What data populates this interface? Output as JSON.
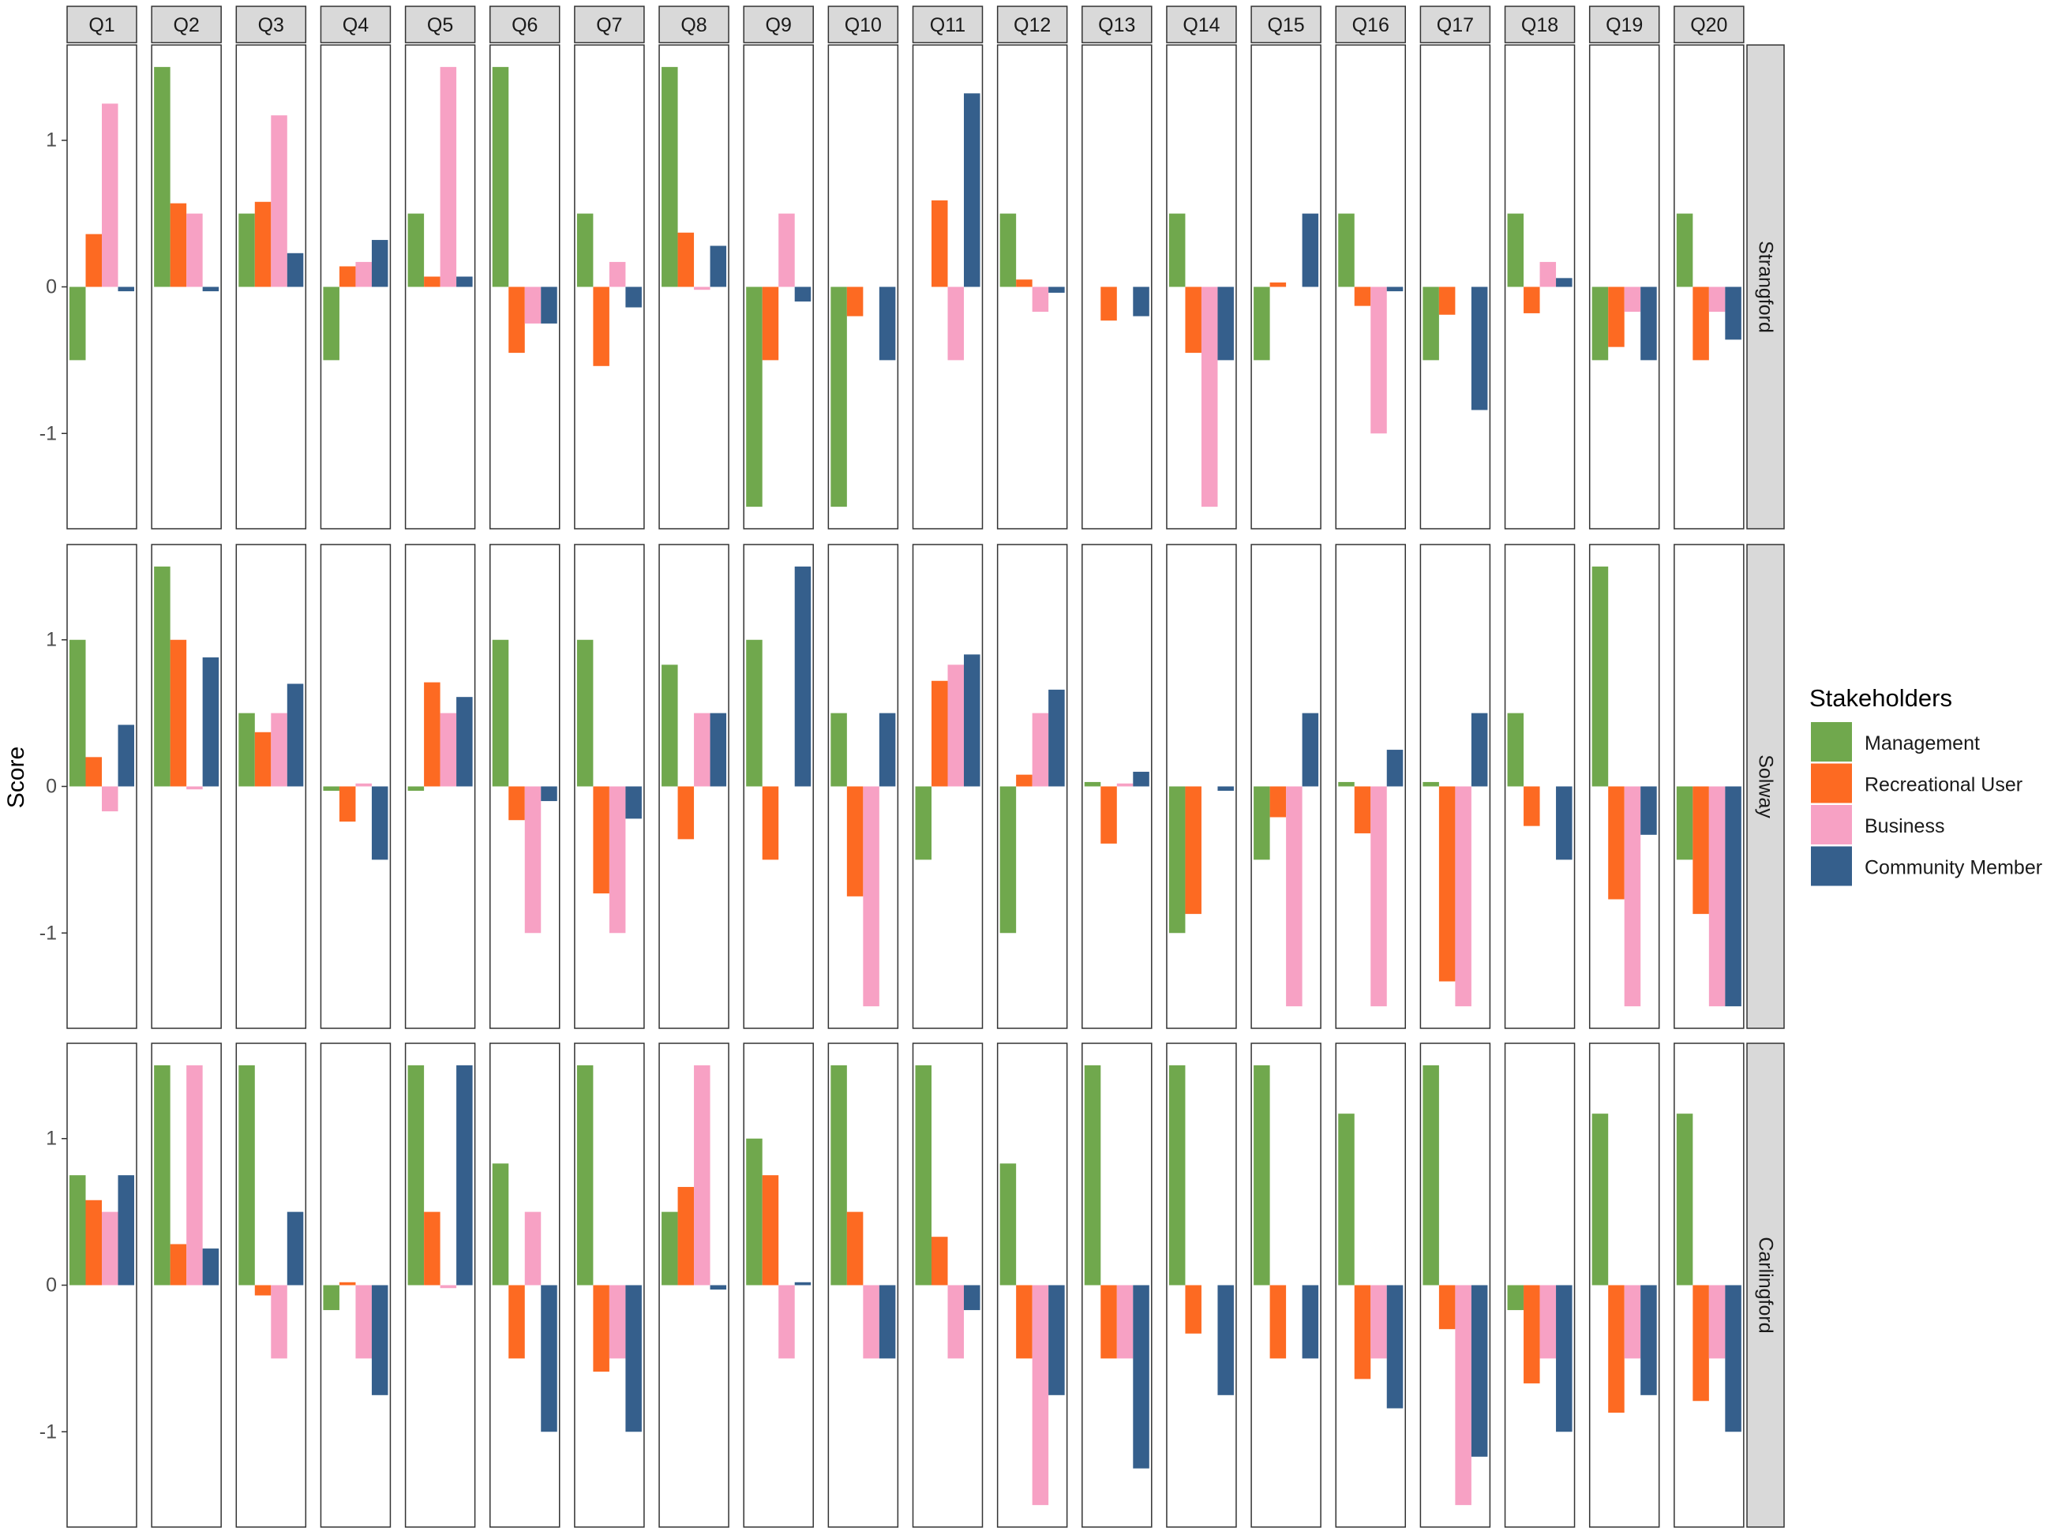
{
  "chart_data": {
    "type": "bar",
    "ylabel": "Score",
    "ylim": [
      -1.65,
      1.65
    ],
    "yticks": [
      -1,
      0,
      1
    ],
    "ytick_labels": [
      "-1",
      "0",
      "1"
    ],
    "grid": false,
    "legend_position": "right",
    "legend_title": "Stakeholders",
    "categories": [
      "Q1",
      "Q2",
      "Q3",
      "Q4",
      "Q5",
      "Q6",
      "Q7",
      "Q8",
      "Q9",
      "Q10",
      "Q11",
      "Q12",
      "Q13",
      "Q14",
      "Q15",
      "Q16",
      "Q17",
      "Q18",
      "Q19",
      "Q20"
    ],
    "series": [
      {
        "name": "Management",
        "color": "#70a84d"
      },
      {
        "name": "Recreational User",
        "color": "#fd6a22"
      },
      {
        "name": "Business",
        "color": "#f7a1c4"
      },
      {
        "name": "Community Member",
        "color": "#355f8c"
      }
    ],
    "panels": [
      {
        "name": "Strangford",
        "values": [
          [
            -0.5,
            0.36,
            1.25,
            -0.03
          ],
          [
            1.5,
            0.57,
            0.5,
            -0.03
          ],
          [
            0.5,
            0.58,
            1.17,
            0.23
          ],
          [
            -0.5,
            0.14,
            0.17,
            0.32
          ],
          [
            0.5,
            0.07,
            1.5,
            0.07
          ],
          [
            1.5,
            -0.45,
            -0.25,
            -0.25
          ],
          [
            0.5,
            -0.54,
            0.17,
            -0.14
          ],
          [
            1.5,
            0.37,
            -0.02,
            0.28
          ],
          [
            -1.5,
            -0.5,
            0.5,
            -0.1
          ],
          [
            -1.5,
            -0.2,
            0.0,
            -0.5
          ],
          [
            0.0,
            0.59,
            -0.5,
            1.32
          ],
          [
            0.5,
            0.05,
            -0.17,
            -0.04
          ],
          [
            0.0,
            -0.23,
            0.0,
            -0.2
          ],
          [
            0.5,
            -0.45,
            -1.5,
            -0.5
          ],
          [
            -0.5,
            0.03,
            0.0,
            0.5
          ],
          [
            0.5,
            -0.13,
            -1.0,
            -0.03
          ],
          [
            -0.5,
            -0.19,
            0.0,
            -0.84
          ],
          [
            0.5,
            -0.18,
            0.17,
            0.06
          ],
          [
            -0.5,
            -0.41,
            -0.17,
            -0.5
          ],
          [
            0.5,
            -0.5,
            -0.17,
            -0.36
          ]
        ]
      },
      {
        "name": "Solway",
        "values": [
          [
            1.0,
            0.2,
            -0.17,
            0.42
          ],
          [
            1.5,
            1.0,
            -0.02,
            0.88
          ],
          [
            0.5,
            0.37,
            0.5,
            0.7
          ],
          [
            -0.03,
            -0.24,
            0.02,
            -0.5
          ],
          [
            -0.03,
            0.71,
            0.5,
            0.61
          ],
          [
            1.0,
            -0.23,
            -1.0,
            -0.1
          ],
          [
            1.0,
            -0.73,
            -1.0,
            -0.22
          ],
          [
            0.83,
            -0.36,
            0.5,
            0.5
          ],
          [
            1.0,
            -0.5,
            0.0,
            1.5
          ],
          [
            0.5,
            -0.75,
            -1.5,
            0.5
          ],
          [
            -0.5,
            0.72,
            0.83,
            0.9
          ],
          [
            -1.0,
            0.08,
            0.5,
            0.66
          ],
          [
            0.03,
            -0.39,
            0.02,
            0.1
          ],
          [
            -1.0,
            -0.87,
            0.0,
            -0.03
          ],
          [
            -0.5,
            -0.21,
            -1.5,
            0.5
          ],
          [
            0.03,
            -0.32,
            -1.5,
            0.25
          ],
          [
            0.03,
            -1.33,
            -1.5,
            0.5
          ],
          [
            0.5,
            -0.27,
            0.0,
            -0.5
          ],
          [
            1.5,
            -0.77,
            -1.5,
            -0.33
          ],
          [
            -0.5,
            -0.87,
            -1.5,
            -1.5
          ]
        ]
      },
      {
        "name": "Carlingford",
        "values": [
          [
            0.75,
            0.58,
            0.5,
            0.75
          ],
          [
            1.5,
            0.28,
            1.5,
            0.25
          ],
          [
            1.5,
            -0.07,
            -0.5,
            0.5
          ],
          [
            -0.17,
            0.02,
            -0.5,
            -0.75
          ],
          [
            1.5,
            0.5,
            -0.02,
            1.5
          ],
          [
            0.83,
            -0.5,
            0.5,
            -1.0
          ],
          [
            1.5,
            -0.59,
            -0.5,
            -1.0
          ],
          [
            0.5,
            0.67,
            1.5,
            -0.03
          ],
          [
            1.0,
            0.75,
            -0.5,
            0.02
          ],
          [
            1.5,
            0.5,
            -0.5,
            -0.5
          ],
          [
            1.5,
            0.33,
            -0.5,
            -0.17
          ],
          [
            0.83,
            -0.5,
            -1.5,
            -0.75
          ],
          [
            1.5,
            -0.5,
            -0.5,
            -1.25
          ],
          [
            1.5,
            -0.33,
            0.0,
            -0.75
          ],
          [
            1.5,
            -0.5,
            0.0,
            -0.5
          ],
          [
            1.17,
            -0.64,
            -0.5,
            -0.84
          ],
          [
            1.5,
            -0.3,
            -1.5,
            -1.17
          ],
          [
            -0.17,
            -0.67,
            -0.5,
            -1.0
          ],
          [
            1.17,
            -0.87,
            -0.5,
            -0.75
          ],
          [
            1.17,
            -0.79,
            -0.5,
            -1.0
          ]
        ]
      }
    ]
  }
}
